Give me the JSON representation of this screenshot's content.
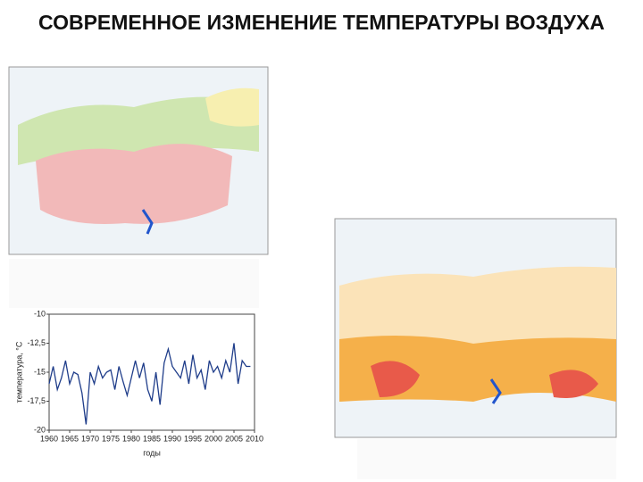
{
  "header": {
    "title": "СОВРЕМЕННОЕ ИЗМЕНЕНИЕ ТЕМПЕРАТУРЫ ВОЗДУХА"
  },
  "chart_data": {
    "type": "line",
    "x_label": "годы",
    "y_label": "температура, °С",
    "x": [
      1960,
      1961,
      1962,
      1963,
      1964,
      1965,
      1966,
      1967,
      1968,
      1969,
      1970,
      1971,
      1972,
      1973,
      1974,
      1975,
      1976,
      1977,
      1978,
      1979,
      1980,
      1981,
      1982,
      1983,
      1984,
      1985,
      1986,
      1987,
      1988,
      1989,
      1990,
      1991,
      1992,
      1993,
      1994,
      1995,
      1996,
      1997,
      1998,
      1999,
      2000,
      2001,
      2002,
      2003,
      2004,
      2005,
      2006,
      2007,
      2008,
      2009
    ],
    "series": [
      {
        "color": "#1f3d8a",
        "values": [
          -16,
          -14.5,
          -16.5,
          -15.5,
          -14,
          -16,
          -15,
          -15.2,
          -16.8,
          -19.5,
          -15,
          -16,
          -14.5,
          -15.5,
          -15,
          -14.8,
          -16.5,
          -14.5,
          -15.8,
          -17,
          -15.5,
          -14,
          -15.5,
          -14.2,
          -16.5,
          -17.5,
          -15,
          -17.8,
          -14.2,
          -13,
          -14.5,
          -15,
          -15.5,
          -14,
          -16,
          -13.5,
          -15.5,
          -14.8,
          -16.5,
          -14,
          -15,
          -14.5,
          -15.5,
          -14,
          -15,
          -12.5,
          -16,
          -14,
          -14.5,
          -14.5
        ]
      }
    ],
    "xlim": [
      1960,
      2010
    ],
    "xticks": [
      1960,
      1965,
      1970,
      1975,
      1980,
      1985,
      1990,
      1995,
      2000,
      2005,
      2010
    ],
    "ylim": [
      -20,
      -10
    ],
    "yticks": [
      -10,
      {
        "value": -12.5,
        "label": "-12,5"
      },
      -15,
      {
        "value": -17.5,
        "label": "-17,5"
      },
      -20
    ]
  }
}
